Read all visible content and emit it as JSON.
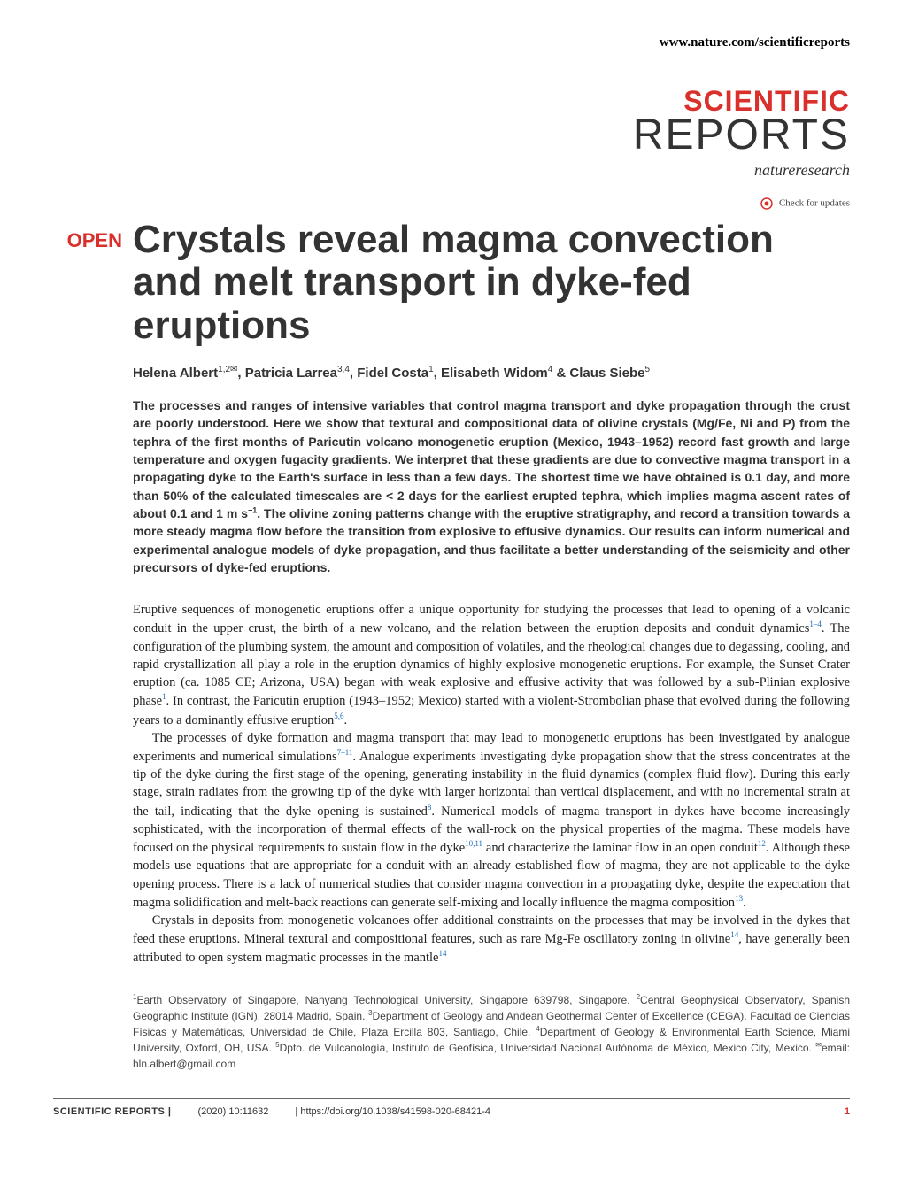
{
  "header": {
    "url": "www.nature.com/scientificreports",
    "journal_top": "SCIENTIFIC",
    "journal_bottom": "REPORTS",
    "publisher": "natureresearch",
    "check_updates": "Check for updates"
  },
  "open_badge": "OPEN",
  "title": "Crystals reveal magma convection and melt transport in dyke-fed eruptions",
  "authors_html": "Helena Albert<sup>1,2✉</sup>, Patricia Larrea<sup>3,4</sup>, Fidel Costa<sup>1</sup>, Elisabeth Widom<sup>4</sup> & Claus Siebe<sup>5</sup>",
  "abstract": "The processes and ranges of intensive variables that control magma transport and dyke propagation through the crust are poorly understood. Here we show that textural and compositional data of olivine crystals (Mg/Fe, Ni and P) from the tephra of the first months of Paricutin volcano monogenetic eruption (Mexico, 1943–1952) record fast growth and large temperature and oxygen fugacity gradients. We interpret that these gradients are due to convective magma transport in a propagating dyke to the Earth's surface in less than a few days. The shortest time we have obtained is 0.1 day, and more than 50% of the calculated timescales are < 2 days for the earliest erupted tephra, which implies magma ascent rates of about 0.1 and 1 m s<sup>−1</sup>. The olivine zoning patterns change with the eruptive stratigraphy, and record a transition towards a more steady magma flow before the transition from explosive to effusive dynamics. Our results can inform numerical and experimental analogue models of dyke propagation, and thus facilitate a better understanding of the seismicity and other precursors of dyke-fed eruptions.",
  "body": {
    "p1": "Eruptive sequences of monogenetic eruptions offer a unique opportunity for studying the processes that lead to opening of a volcanic conduit in the upper crust, the birth of a new volcano, and the relation between the eruption deposits and conduit dynamics<sup class=\"ref-link\">1–4</sup>. The configuration of the plumbing system, the amount and composition of volatiles, and the rheological changes due to degassing, cooling, and rapid crystallization all play a role in the eruption dynamics of highly explosive monogenetic eruptions. For example, the Sunset Crater eruption (ca. 1085 CE; Arizona, USA) began with weak explosive and effusive activity that was followed by a sub-Plinian explosive phase<sup class=\"ref-link\">1</sup>. In contrast, the Paricutin eruption (1943–1952; Mexico) started with a violent-Strombolian phase that evolved during the following years to a dominantly effusive eruption<sup class=\"ref-link\">5,6</sup>.",
    "p2": "The processes of dyke formation and magma transport that may lead to monogenetic eruptions has been investigated by analogue experiments and numerical simulations<sup class=\"ref-link\">7–11</sup>. Analogue experiments investigating dyke propagation show that the stress concentrates at the tip of the dyke during the first stage of the opening, generating instability in the fluid dynamics (complex fluid flow). During this early stage, strain radiates from the growing tip of the dyke with larger horizontal than vertical displacement, and with no incremental strain at the tail, indicating that the dyke opening is sustained<sup class=\"ref-link\">8</sup>. Numerical models of magma transport in dykes have become increasingly sophisticated, with the incorporation of thermal effects of the wall-rock on the physical properties of the magma. These models have focused on the physical requirements to sustain flow in the dyke<sup class=\"ref-link\">10,11</sup> and characterize the laminar flow in an open conduit<sup class=\"ref-link\">12</sup>. Although these models use equations that are appropriate for a conduit with an already established flow of magma, they are not applicable to the dyke opening process. There is a lack of numerical studies that consider magma convection in a propagating dyke, despite the expectation that magma solidification and melt-back reactions can generate self-mixing and locally influence the magma composition<sup class=\"ref-link\">13</sup>.",
    "p3": "Crystals in deposits from monogenetic volcanoes offer additional constraints on the processes that may be involved in the dykes that feed these eruptions. Mineral textural and compositional features, such as rare Mg-Fe oscillatory zoning in olivine<sup class=\"ref-link\">14</sup>, have generally been attributed to open system magmatic processes in the mantle<sup class=\"ref-link\">14</sup>"
  },
  "affiliations": "<sup>1</sup>Earth Observatory of Singapore, Nanyang Technological University, Singapore 639798, Singapore. <sup>2</sup>Central Geophysical Observatory, Spanish Geographic Institute (IGN), 28014 Madrid, Spain. <sup>3</sup>Department of Geology and Andean Geothermal Center of Excellence (CEGA), Facultad de Ciencias Físicas y Matemáticas, Universidad de Chile, Plaza Ercilla 803, Santiago, Chile. <sup>4</sup>Department of Geology & Environmental Earth Science, Miami University, Oxford, OH, USA. <sup>5</sup>Dpto. de Vulcanología, Instituto de Geofísica, Universidad Nacional Autónoma de México, Mexico City, Mexico. <sup>✉</sup>email: hln.albert@gmail.com",
  "footer": {
    "journal": "SCIENTIFIC REPORTS |",
    "citation": "(2020) 10:11632",
    "doi": "| https://doi.org/10.1038/s41598-020-68421-4",
    "page": "1"
  },
  "colors": {
    "accent": "#d9302c",
    "link": "#1a6bb8",
    "text": "#222222",
    "rule": "#666666"
  }
}
